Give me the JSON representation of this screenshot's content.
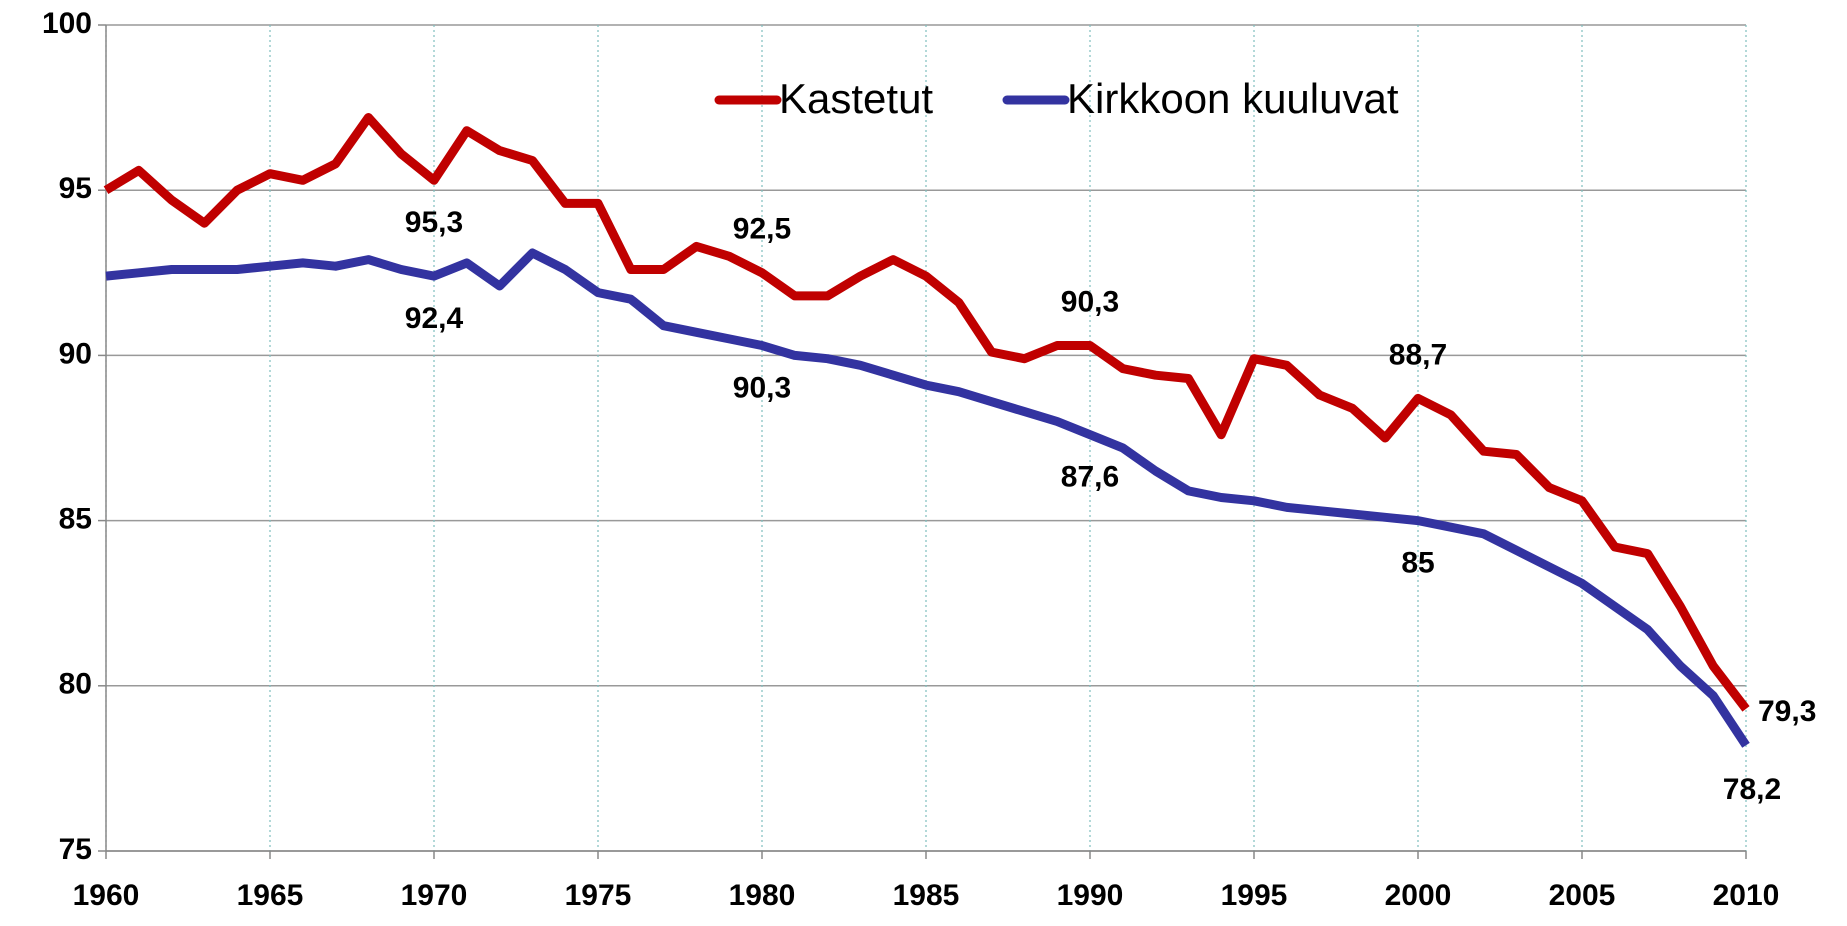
{
  "chart_data": {
    "type": "line",
    "x": [
      1960,
      1961,
      1962,
      1963,
      1964,
      1965,
      1966,
      1967,
      1968,
      1969,
      1970,
      1971,
      1972,
      1973,
      1974,
      1975,
      1976,
      1977,
      1978,
      1979,
      1980,
      1981,
      1982,
      1983,
      1984,
      1985,
      1986,
      1987,
      1988,
      1989,
      1990,
      1991,
      1992,
      1993,
      1994,
      1995,
      1996,
      1997,
      1998,
      1999,
      2000,
      2001,
      2002,
      2003,
      2004,
      2005,
      2006,
      2007,
      2008,
      2009,
      2010
    ],
    "series": [
      {
        "name": "Kastetut",
        "color": "#c00000",
        "values": [
          95.0,
          95.6,
          94.7,
          94.0,
          95.0,
          95.5,
          95.3,
          95.8,
          97.2,
          96.1,
          95.3,
          96.8,
          96.2,
          95.9,
          94.6,
          94.6,
          92.6,
          92.6,
          93.3,
          93.0,
          92.5,
          91.8,
          91.8,
          92.4,
          92.9,
          92.4,
          91.6,
          90.1,
          89.9,
          90.3,
          90.3,
          89.6,
          89.4,
          89.3,
          87.6,
          89.9,
          89.7,
          88.8,
          88.4,
          87.5,
          88.7,
          88.2,
          87.1,
          87.0,
          86.0,
          85.6,
          84.2,
          84.0,
          82.4,
          80.6,
          79.3
        ],
        "value_labels": [
          null,
          null,
          null,
          null,
          null,
          null,
          null,
          null,
          null,
          null,
          "95,3",
          null,
          null,
          null,
          null,
          null,
          null,
          null,
          null,
          null,
          "92,5",
          null,
          null,
          null,
          null,
          null,
          null,
          null,
          null,
          null,
          "90,3",
          null,
          null,
          null,
          null,
          null,
          null,
          null,
          null,
          null,
          "88,7",
          null,
          null,
          null,
          null,
          null,
          null,
          null,
          null,
          null,
          "79,3"
        ]
      },
      {
        "name": "Kirkkoon kuuluvat",
        "color": "#3333a0",
        "values": [
          92.4,
          92.5,
          92.6,
          92.6,
          92.6,
          92.7,
          92.8,
          92.7,
          92.9,
          92.6,
          92.4,
          92.8,
          92.1,
          93.1,
          92.6,
          91.9,
          91.7,
          90.9,
          90.7,
          90.5,
          90.3,
          90.0,
          89.9,
          89.7,
          89.4,
          89.1,
          88.9,
          88.6,
          88.3,
          88.0,
          87.6,
          87.2,
          86.5,
          85.9,
          85.7,
          85.6,
          85.4,
          85.3,
          85.2,
          85.1,
          85.0,
          84.8,
          84.6,
          84.1,
          83.6,
          83.1,
          82.4,
          81.7,
          80.6,
          79.7,
          78.2
        ],
        "value_labels": [
          null,
          null,
          null,
          null,
          null,
          null,
          null,
          null,
          null,
          null,
          "92,4",
          null,
          null,
          null,
          null,
          null,
          null,
          null,
          null,
          null,
          "90,3",
          null,
          null,
          null,
          null,
          null,
          null,
          null,
          null,
          null,
          "87,6",
          null,
          null,
          null,
          null,
          null,
          null,
          null,
          null,
          null,
          "85",
          null,
          null,
          null,
          null,
          null,
          null,
          null,
          null,
          null,
          "78,2"
        ]
      }
    ],
    "xlim": [
      1960,
      2010
    ],
    "xticks": [
      1960,
      1965,
      1970,
      1975,
      1980,
      1985,
      1990,
      1995,
      2000,
      2005,
      2010
    ],
    "ylim": [
      75,
      100
    ],
    "yticks": [
      75,
      80,
      85,
      90,
      95,
      100
    ],
    "grid": true,
    "legend": "top"
  }
}
